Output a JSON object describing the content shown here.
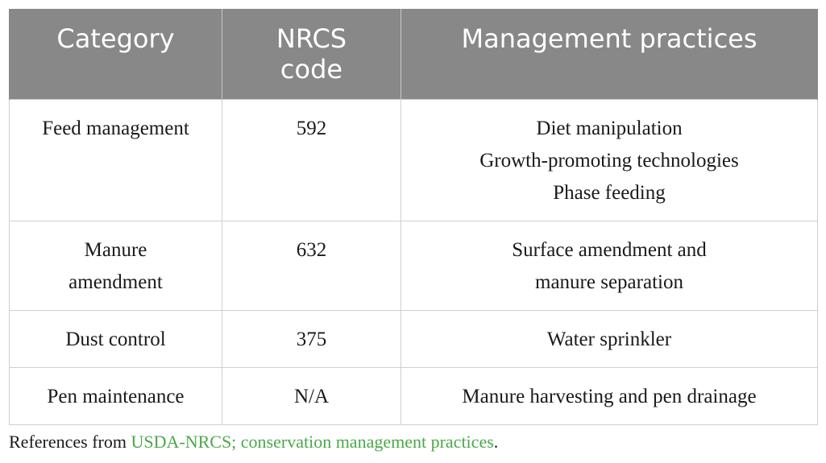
{
  "table": {
    "headers": {
      "category": "Category",
      "nrcs_code_line1": "NRCS",
      "nrcs_code_line2": "code",
      "practices": "Management practices"
    },
    "rows": [
      {
        "category_lines": [
          "Feed management"
        ],
        "code": "592",
        "practices_lines": [
          "Diet manipulation",
          "Growth-promoting technologies",
          "Phase feeding"
        ]
      },
      {
        "category_lines": [
          "Manure",
          "amendment"
        ],
        "code": "632",
        "practices_lines": [
          "Surface amendment and",
          "manure separation"
        ]
      },
      {
        "category_lines": [
          "Dust control"
        ],
        "code": "375",
        "practices_lines": [
          "Water sprinkler"
        ]
      },
      {
        "category_lines": [
          "Pen maintenance"
        ],
        "code": "N/A",
        "practices_lines": [
          "Manure harvesting and pen drainage"
        ]
      }
    ]
  },
  "footnote": {
    "prefix": "References from ",
    "link_text": "USDA-NRCS; conservation management practices",
    "suffix": "."
  },
  "colors": {
    "header_bg": "#888888",
    "header_text": "#ffffff",
    "link": "#4aa84a"
  }
}
